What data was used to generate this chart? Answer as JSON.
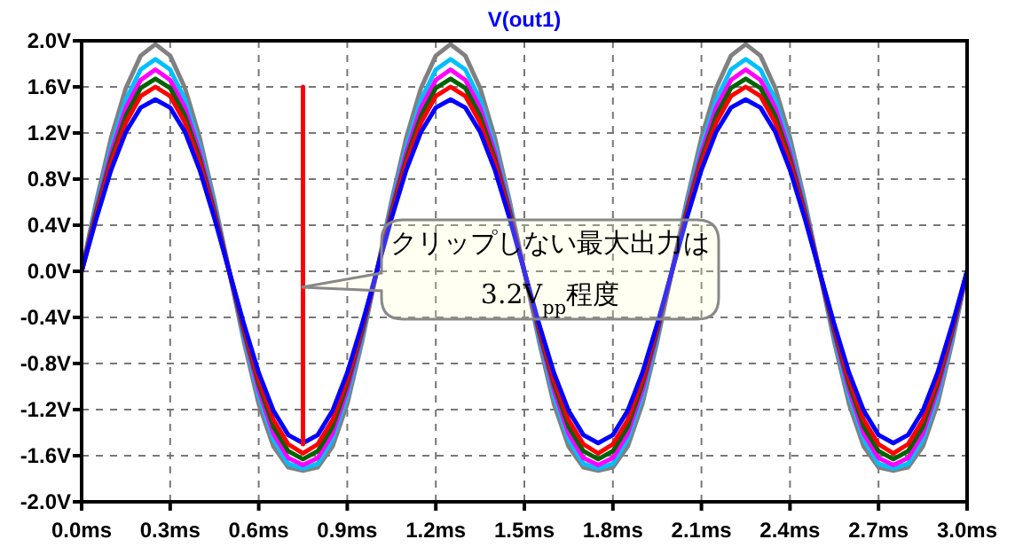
{
  "chart_data": {
    "type": "line",
    "title": "V(out1)",
    "x": [
      0,
      0.05,
      0.1,
      0.15,
      0.2,
      0.25,
      0.3,
      0.35,
      0.4,
      0.45,
      0.5,
      0.55,
      0.6,
      0.65,
      0.7,
      0.75,
      0.8,
      0.85,
      0.9,
      0.95,
      1,
      1.05,
      1.1,
      1.15,
      1.2,
      1.25,
      1.3,
      1.35,
      1.4,
      1.45,
      1.5,
      1.55,
      1.6,
      1.65,
      1.7,
      1.75,
      1.8,
      1.85,
      1.9,
      1.95,
      2,
      2.05,
      2.1,
      2.15,
      2.2,
      2.25,
      2.3,
      2.35,
      2.4,
      2.45,
      2.5,
      2.55,
      2.6,
      2.65,
      2.7,
      2.75,
      2.8,
      2.85,
      2.9,
      2.95,
      3
    ],
    "series": [
      {
        "color": "#808080",
        "values": [
          0,
          0.61,
          1.16,
          1.59,
          1.87,
          1.97,
          1.87,
          1.59,
          1.16,
          0.61,
          0,
          -0.61,
          -1.15,
          -1.52,
          -1.7,
          -1.73,
          -1.7,
          -1.52,
          -1.15,
          -0.61,
          0,
          0.61,
          1.16,
          1.59,
          1.87,
          1.97,
          1.87,
          1.59,
          1.16,
          0.61,
          0,
          -0.61,
          -1.15,
          -1.52,
          -1.7,
          -1.73,
          -1.7,
          -1.52,
          -1.15,
          -0.61,
          0,
          0.61,
          1.16,
          1.59,
          1.87,
          1.97,
          1.87,
          1.59,
          1.16,
          0.61,
          0,
          -0.61,
          -1.15,
          -1.52,
          -1.7,
          -1.73,
          -1.7,
          -1.52,
          -1.15,
          -0.61,
          0
        ]
      },
      {
        "color": "#00bfff",
        "values": [
          0,
          0.57,
          1.08,
          1.49,
          1.75,
          1.84,
          1.75,
          1.49,
          1.08,
          0.57,
          0,
          -0.57,
          -1.08,
          -1.46,
          -1.67,
          -1.71,
          -1.67,
          -1.46,
          -1.08,
          -0.57,
          0,
          0.57,
          1.08,
          1.49,
          1.75,
          1.84,
          1.75,
          1.49,
          1.08,
          0.57,
          0,
          -0.57,
          -1.08,
          -1.46,
          -1.67,
          -1.71,
          -1.67,
          -1.46,
          -1.08,
          -0.57,
          0,
          0.57,
          1.08,
          1.49,
          1.75,
          1.84,
          1.75,
          1.49,
          1.08,
          0.57,
          0,
          -0.57,
          -1.08,
          -1.46,
          -1.67,
          -1.71,
          -1.67,
          -1.46,
          -1.08,
          -0.57,
          0
        ]
      },
      {
        "color": "#ff00ff",
        "values": [
          0,
          0.54,
          1.03,
          1.42,
          1.66,
          1.75,
          1.66,
          1.42,
          1.03,
          0.54,
          0,
          -0.54,
          -1.03,
          -1.41,
          -1.62,
          -1.68,
          -1.62,
          -1.41,
          -1.03,
          -0.54,
          0,
          0.54,
          1.03,
          1.42,
          1.66,
          1.75,
          1.66,
          1.42,
          1.03,
          0.54,
          0,
          -0.54,
          -1.03,
          -1.41,
          -1.62,
          -1.68,
          -1.62,
          -1.41,
          -1.03,
          -0.54,
          0,
          0.54,
          1.03,
          1.42,
          1.66,
          1.75,
          1.66,
          1.42,
          1.03,
          0.54,
          0,
          -0.54,
          -1.03,
          -1.41,
          -1.62,
          -1.68,
          -1.62,
          -1.41,
          -1.03,
          -0.54,
          0
        ]
      },
      {
        "color": "#006400",
        "values": [
          0,
          0.52,
          0.98,
          1.35,
          1.59,
          1.67,
          1.59,
          1.35,
          0.98,
          0.52,
          0,
          -0.52,
          -0.98,
          -1.35,
          -1.56,
          -1.63,
          -1.56,
          -1.35,
          -0.98,
          -0.52,
          0,
          0.52,
          0.98,
          1.35,
          1.59,
          1.67,
          1.59,
          1.35,
          0.98,
          0.52,
          0,
          -0.52,
          -0.98,
          -1.35,
          -1.56,
          -1.63,
          -1.56,
          -1.35,
          -0.98,
          -0.52,
          0,
          0.52,
          0.98,
          1.35,
          1.59,
          1.67,
          1.59,
          1.35,
          0.98,
          0.52,
          0,
          -0.52,
          -0.98,
          -1.35,
          -1.56,
          -1.63,
          -1.56,
          -1.35,
          -0.98,
          -0.52,
          0
        ]
      },
      {
        "color": "#ff0000",
        "values": [
          0,
          0.49,
          0.94,
          1.29,
          1.52,
          1.6,
          1.52,
          1.29,
          0.94,
          0.49,
          0,
          -0.49,
          -0.94,
          -1.29,
          -1.5,
          -1.58,
          -1.5,
          -1.29,
          -0.94,
          -0.49,
          0,
          0.49,
          0.94,
          1.29,
          1.52,
          1.6,
          1.52,
          1.29,
          0.94,
          0.49,
          0,
          -0.49,
          -0.94,
          -1.29,
          -1.5,
          -1.58,
          -1.5,
          -1.29,
          -0.94,
          -0.49,
          0,
          0.49,
          0.94,
          1.29,
          1.52,
          1.6,
          1.52,
          1.29,
          0.94,
          0.49,
          0,
          -0.49,
          -0.94,
          -1.29,
          -1.5,
          -1.58,
          -1.5,
          -1.29,
          -0.94,
          -0.49,
          0
        ]
      },
      {
        "color": "#0000ff",
        "values": [
          0,
          0.46,
          0.88,
          1.21,
          1.42,
          1.49,
          1.42,
          1.21,
          0.88,
          0.46,
          0,
          -0.46,
          -0.88,
          -1.21,
          -1.42,
          -1.49,
          -1.42,
          -1.21,
          -0.88,
          -0.46,
          0,
          0.46,
          0.88,
          1.21,
          1.42,
          1.49,
          1.42,
          1.21,
          0.88,
          0.46,
          0,
          -0.46,
          -0.88,
          -1.21,
          -1.42,
          -1.49,
          -1.42,
          -1.21,
          -0.88,
          -0.46,
          0,
          0.46,
          0.88,
          1.21,
          1.42,
          1.49,
          1.42,
          1.21,
          0.88,
          0.46,
          0,
          -0.46,
          -0.88,
          -1.21,
          -1.42,
          -1.49,
          -1.42,
          -1.21,
          -0.88,
          -0.46,
          0
        ]
      },
      {
        "color": "#ff0000",
        "x": [
          0.75,
          0.75
        ],
        "values": [
          -1.5,
          1.6
        ]
      }
    ],
    "xlim": [
      0,
      3
    ],
    "ylim": [
      -2,
      2
    ],
    "xticks": [
      {
        "value": 0,
        "label": "0.0ms"
      },
      {
        "value": 0.3,
        "label": "0.3ms"
      },
      {
        "value": 0.6,
        "label": "0.6ms"
      },
      {
        "value": 0.9,
        "label": "0.9ms"
      },
      {
        "value": 1.2,
        "label": "1.2ms"
      },
      {
        "value": 1.5,
        "label": "1.5ms"
      },
      {
        "value": 1.8,
        "label": "1.8ms"
      },
      {
        "value": 2.1,
        "label": "2.1ms"
      },
      {
        "value": 2.4,
        "label": "2.4ms"
      },
      {
        "value": 2.7,
        "label": "2.7ms"
      },
      {
        "value": 3,
        "label": "3.0ms"
      }
    ],
    "yticks": [
      {
        "value": 2,
        "label": "2.0V"
      },
      {
        "value": 1.6,
        "label": "1.6V"
      },
      {
        "value": 1.2,
        "label": "1.2V"
      },
      {
        "value": 0.8,
        "label": "0.8V"
      },
      {
        "value": 0.4,
        "label": "0.4V"
      },
      {
        "value": 0,
        "label": "0.0V"
      },
      {
        "value": -0.4,
        "label": "-0.4V"
      },
      {
        "value": -0.8,
        "label": "-0.8V"
      },
      {
        "value": -1.2,
        "label": "-1.2V"
      },
      {
        "value": -1.6,
        "label": "-1.6V"
      },
      {
        "value": -2,
        "label": "-2.0V"
      }
    ],
    "grid": true,
    "line_style": "solid",
    "marker": "none",
    "annotations": [
      "クリップしない最大出力は\n3.2V$_{pp}$程度"
    ]
  }
}
